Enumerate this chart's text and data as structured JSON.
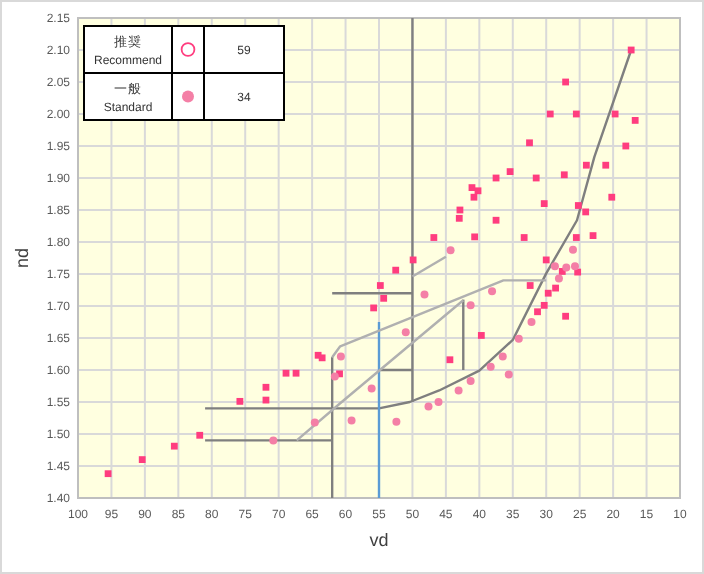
{
  "chart_data": {
    "type": "scatter",
    "xlabel": "vd",
    "ylabel": "nd",
    "xlim": [
      100,
      10
    ],
    "ylim": [
      1.4,
      2.15
    ],
    "xticks": [
      100,
      95,
      90,
      85,
      80,
      75,
      70,
      65,
      60,
      55,
      50,
      45,
      40,
      35,
      30,
      25,
      20,
      15,
      10
    ],
    "yticks": [
      {
        "value": 1.4,
        "label": "1.40"
      },
      1.45,
      {
        "value": 1.5,
        "label": "1.50"
      },
      1.55,
      {
        "value": 1.6,
        "label": "1.60"
      },
      1.65,
      {
        "value": 1.7,
        "label": "1.70"
      },
      1.75,
      {
        "value": 1.8,
        "label": "1.80"
      },
      1.85,
      {
        "value": 1.9,
        "label": "1.90"
      },
      1.95,
      {
        "value": 2.0,
        "label": "2.00"
      },
      2.05,
      {
        "value": 2.1,
        "label": "2.10"
      },
      2.15
    ],
    "grid": true,
    "legend": "top left",
    "annotations": [
      "59",
      "34"
    ],
    "series": [
      {
        "name": "推奨 Recommend",
        "marker": "square",
        "color": "#ff3d7f",
        "x": [
          17.3,
          27.1,
          29.4,
          25.5,
          19.7,
          16.7,
          32.5,
          18.1,
          24.0,
          21.1,
          35.4,
          37.5,
          31.5,
          27.3,
          41.1,
          40.2,
          40.8,
          20.2,
          30.3,
          25.2,
          42.9,
          24.1,
          43.0,
          37.5,
          46.8,
          40.7,
          33.3,
          25.5,
          23.0,
          49.9,
          52.5,
          30.0,
          27.6,
          25.3,
          54.8,
          54.3,
          55.8,
          32.4,
          29.7,
          28.6,
          30.3,
          31.3,
          27.1,
          39.7,
          44.4,
          64.1,
          63.5,
          60.9,
          68.9,
          67.4,
          71.9,
          75.8,
          71.9,
          81.8,
          85.6,
          90.4,
          95.5
        ],
        "values": [
          2.1,
          2.05,
          2.0,
          2.0,
          2.0,
          1.99,
          1.955,
          1.95,
          1.92,
          1.92,
          1.91,
          1.9,
          1.9,
          1.905,
          1.885,
          1.88,
          1.87,
          1.87,
          1.86,
          1.857,
          1.85,
          1.847,
          1.837,
          1.834,
          1.807,
          1.808,
          1.807,
          1.807,
          1.81,
          1.772,
          1.756,
          1.772,
          1.754,
          1.753,
          1.732,
          1.712,
          1.697,
          1.732,
          1.72,
          1.728,
          1.701,
          1.691,
          1.684,
          1.654,
          1.616,
          1.623,
          1.619,
          1.594,
          1.595,
          1.595,
          1.573,
          1.551,
          1.553,
          1.498,
          1.481,
          1.46,
          1.438
        ]
      },
      {
        "name": "一般 Standard",
        "marker": "circle",
        "color": "#f47fa6",
        "x": [
          48.2,
          51.0,
          41.3,
          38.1,
          34.1,
          36.5,
          35.6,
          38.3,
          41.3,
          43.1,
          46.1,
          47.6,
          52.4,
          56.1,
          32.2,
          28.1,
          25.7,
          27.0,
          60.7,
          61.6,
          64.6,
          59.1,
          70.8,
          44.3,
          26.0,
          28.7
        ],
        "values": [
          1.718,
          1.659,
          1.701,
          1.723,
          1.649,
          1.621,
          1.593,
          1.605,
          1.583,
          1.568,
          1.55,
          1.543,
          1.519,
          1.571,
          1.675,
          1.743,
          1.762,
          1.76,
          1.621,
          1.59,
          1.518,
          1.521,
          1.49,
          1.787,
          1.788,
          1.762
        ]
      },
      {
        "type": "line",
        "color": "#7f7f7f",
        "x": [
          17.3,
          22.8,
          25.4,
          30,
          35,
          40,
          46,
          50.4,
          55,
          81
        ],
        "values": [
          2.1,
          1.933,
          1.834,
          1.751,
          1.647,
          1.599,
          1.568,
          1.55,
          1.54,
          1.54
        ]
      },
      {
        "type": "line",
        "color": "#7f7f7f",
        "x": [
          81,
          62
        ],
        "values": [
          1.49,
          1.49
        ]
      },
      {
        "type": "line",
        "color": "#7f7f7f",
        "x": [
          62,
          62
        ],
        "values": [
          1.4,
          1.62
        ]
      },
      {
        "type": "line",
        "color": "#7f7f7f",
        "x": [
          50,
          50
        ],
        "values": [
          1.55,
          2.15
        ]
      },
      {
        "type": "line",
        "color": "#7f7f7f",
        "x": [
          62,
          50
        ],
        "values": [
          1.72,
          1.72
        ]
      },
      {
        "type": "line",
        "color": "#7f7f7f",
        "x": [
          55,
          50
        ],
        "values": [
          1.6,
          1.6
        ]
      },
      {
        "type": "line",
        "color": "#7f7f7f",
        "x": [
          42.4,
          42.4
        ],
        "values": [
          1.6,
          1.71
        ]
      },
      {
        "type": "line",
        "color": "#5b9bd5",
        "x": [
          55,
          55
        ],
        "values": [
          1.4,
          1.675
        ]
      },
      {
        "type": "line",
        "color": "#b0b0b0",
        "x": [
          62,
          60.8,
          36.4,
          30
        ],
        "values": [
          1.62,
          1.637,
          1.74,
          1.74
        ]
      },
      {
        "type": "line",
        "color": "#b0b0b0",
        "x": [
          67.3,
          60.8,
          42.4
        ],
        "values": [
          1.49,
          1.548,
          1.709
        ]
      },
      {
        "type": "line",
        "color": "#b0b0b0",
        "x": [
          50,
          45
        ],
        "values": [
          1.746,
          1.777
        ]
      }
    ]
  }
}
